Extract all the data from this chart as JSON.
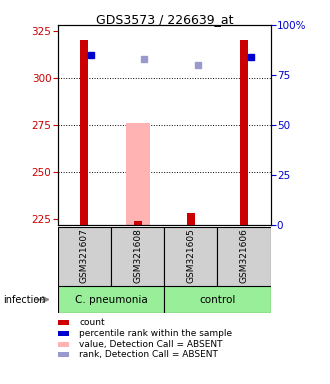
{
  "title": "GDS3573 / 226639_at",
  "samples": [
    "GSM321607",
    "GSM321608",
    "GSM321605",
    "GSM321606"
  ],
  "ylim_left": [
    222,
    328
  ],
  "ylim_right": [
    0,
    100
  ],
  "yticks_left": [
    225,
    250,
    275,
    300,
    325
  ],
  "yticks_right": [
    0,
    25,
    50,
    75,
    100
  ],
  "yright_labels": [
    "0",
    "25",
    "50",
    "75",
    "100%"
  ],
  "red_bars": [
    320,
    224,
    228,
    320
  ],
  "red_bar_color": "#cc0000",
  "pink_bars": [
    null,
    276,
    null,
    null
  ],
  "pink_bar_color": "#ffb3b3",
  "blue_dots": [
    312,
    null,
    null,
    311
  ],
  "blue_dot_color": "#0000cc",
  "light_blue_dots": [
    null,
    310,
    307,
    null
  ],
  "light_blue_dot_color": "#9999cc",
  "bar_bottom": 222,
  "legend_items": [
    {
      "color": "#cc0000",
      "label": "count"
    },
    {
      "color": "#0000cc",
      "label": "percentile rank within the sample"
    },
    {
      "color": "#ffb3b3",
      "label": "value, Detection Call = ABSENT"
    },
    {
      "color": "#9999cc",
      "label": "rank, Detection Call = ABSENT"
    }
  ],
  "left_axis_color": "#cc0000",
  "right_axis_color": "#0000cc",
  "infection_label": "infection",
  "group_spans": [
    {
      "start": 0,
      "end": 1,
      "label": "C. pneumonia",
      "color": "#99ee99"
    },
    {
      "start": 2,
      "end": 3,
      "label": "control",
      "color": "#99ee99"
    }
  ],
  "sample_box_color": "#d0d0d0"
}
